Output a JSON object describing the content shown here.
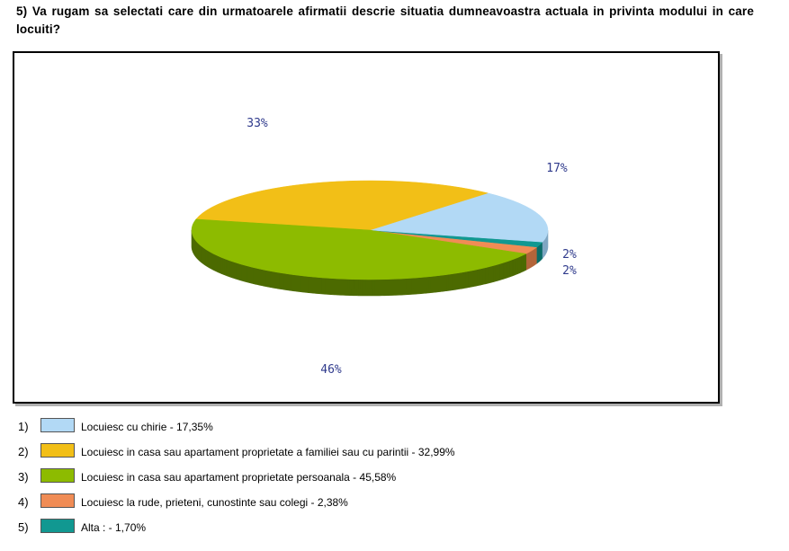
{
  "question": "5) Va rugam sa selectati care din urmatoarele afirmatii descrie situatia dumneavoastra actuala in privinta modului in care locuiti?",
  "chart_data": {
    "type": "pie",
    "three_d": true,
    "categories": [
      "Locuiesc cu chirie",
      "Locuiesc in casa sau apartament proprietate a familiei sau cu parintii",
      "Locuiesc in casa sau apartament proprietate persoanala",
      "Locuiesc la rude, prieteni, cunostinte sau colegi",
      "Alta :"
    ],
    "values": [
      17.35,
      32.99,
      45.58,
      2.38,
      1.7
    ],
    "slice_labels": [
      "17%",
      "33%",
      "46%",
      "2%",
      "2%"
    ],
    "colors": [
      "#b2d9f5",
      "#f2bf17",
      "#8dbb00",
      "#f08c55",
      "#119891"
    ],
    "side_colors": [
      "#7fa6c2",
      "#b58f10",
      "#4c6a00",
      "#b3653a",
      "#0b6d68"
    ],
    "label_color": "#2f3a8c"
  },
  "legend": [
    {
      "num": "1)",
      "label": "Locuiesc cu chirie - 17,35%"
    },
    {
      "num": "2)",
      "label": "Locuiesc in casa sau apartament proprietate a familiei sau cu parintii - 32,99%"
    },
    {
      "num": "3)",
      "label": "Locuiesc in casa sau apartament proprietate persoanala - 45,58%"
    },
    {
      "num": "4)",
      "label": "Locuiesc la rude, prieteni, cunostinte sau colegi - 2,38%"
    },
    {
      "num": "5)",
      "label": "Alta : - 1,70%"
    }
  ]
}
